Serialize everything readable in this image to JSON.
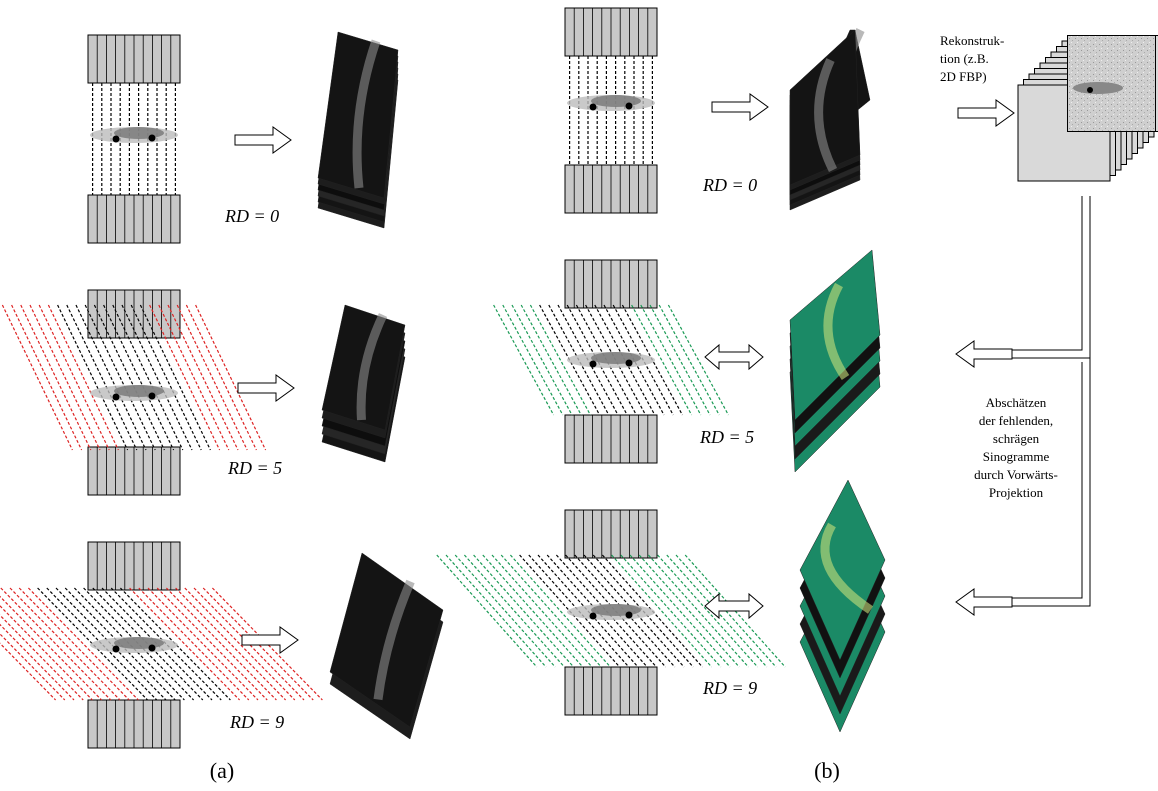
{
  "panels": [
    {
      "label": "(a)",
      "rows": [
        {
          "label": "RD = 0"
        },
        {
          "label": "RD = 5"
        },
        {
          "label": "RD = 9"
        }
      ]
    },
    {
      "label": "(b)",
      "rows": [
        {
          "label": "RD = 0"
        },
        {
          "label": "RD = 5"
        },
        {
          "label": "RD = 9"
        }
      ]
    }
  ],
  "notes": {
    "reconstruction": [
      "Rekonstruk-",
      "tion (z.B.",
      "2D FBP)"
    ],
    "estimation": [
      "Abschätzen",
      "der fehlenden,",
      "schrägen",
      "Sinogramme",
      "durch Vorwärts-",
      "Projektion"
    ]
  }
}
